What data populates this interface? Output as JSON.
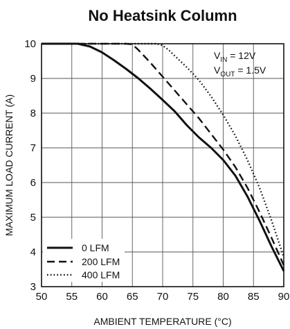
{
  "chart_data": {
    "type": "line",
    "title": "No Heatsink Column",
    "xlabel": "AMBIENT TEMPERATURE (°C)",
    "ylabel": "MAXIMUM LOAD CURRENT (A)",
    "xlim": [
      50,
      90
    ],
    "ylim": [
      3,
      10
    ],
    "xticks": [
      50,
      55,
      60,
      65,
      70,
      75,
      80,
      85,
      90
    ],
    "yticks": [
      3,
      4,
      5,
      6,
      7,
      8,
      9,
      10
    ],
    "grid": true,
    "legend_position": "bottom-left",
    "annotation": {
      "vin_main": "V",
      "vin_sub": "IN",
      "vin_value": " = 12V",
      "vout_main": "V",
      "vout_sub": "OUT",
      "vout_value": " = 1.5V"
    },
    "series": [
      {
        "name": "0 LFM",
        "dash": "solid",
        "x": [
          50,
          52,
          54,
          56,
          58,
          60,
          62,
          64,
          66,
          68,
          70,
          72,
          74,
          76,
          78,
          80,
          82,
          84,
          86,
          88,
          90
        ],
        "y": [
          10,
          10,
          10,
          10,
          9.92,
          9.75,
          9.52,
          9.27,
          9.0,
          8.7,
          8.38,
          8.05,
          7.65,
          7.3,
          7.0,
          6.65,
          6.2,
          5.6,
          4.9,
          4.15,
          3.45
        ]
      },
      {
        "name": "200 LFM",
        "dash": "dashed",
        "x": [
          50,
          55,
          60,
          64,
          65,
          66,
          68,
          70,
          72,
          74,
          76,
          78,
          80,
          82,
          84,
          86,
          88,
          90
        ],
        "y": [
          10,
          10,
          10,
          10,
          9.98,
          9.82,
          9.45,
          9.05,
          8.65,
          8.25,
          7.85,
          7.4,
          6.95,
          6.45,
          5.85,
          5.15,
          4.4,
          3.62
        ]
      },
      {
        "name": "400 LFM",
        "dash": "dotted",
        "x": [
          50,
          55,
          60,
          65,
          69,
          70,
          71,
          72,
          74,
          76,
          78,
          80,
          82,
          84,
          86,
          88,
          90
        ],
        "y": [
          10,
          10,
          10,
          10,
          10,
          9.95,
          9.82,
          9.65,
          9.32,
          8.95,
          8.48,
          7.95,
          7.35,
          6.65,
          5.85,
          4.9,
          3.85
        ]
      }
    ]
  }
}
